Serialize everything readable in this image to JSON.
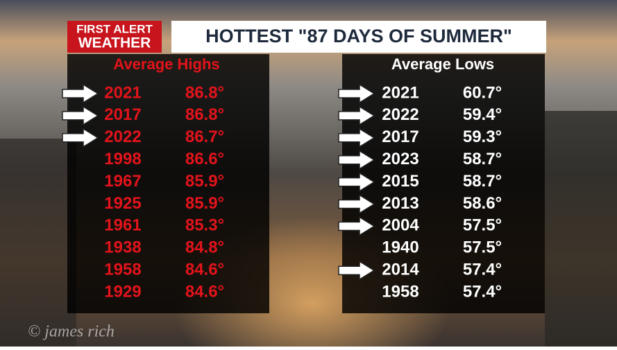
{
  "header": {
    "logo_line1": "FIRST ALERT",
    "logo_line2": "WEATHER",
    "title": "HOTTEST \"87 DAYS OF SUMMER\""
  },
  "tables": [
    {
      "heading": "Average Highs",
      "color": "#e3131b",
      "rows": [
        {
          "year": "2021",
          "value": "86.8°",
          "arrow": true
        },
        {
          "year": "2017",
          "value": "86.8°",
          "arrow": true
        },
        {
          "year": "2022",
          "value": "86.7°",
          "arrow": true
        },
        {
          "year": "1998",
          "value": "86.6°",
          "arrow": false
        },
        {
          "year": "1967",
          "value": "85.9°",
          "arrow": false
        },
        {
          "year": "1925",
          "value": "85.9°",
          "arrow": false
        },
        {
          "year": "1961",
          "value": "85.3°",
          "arrow": false
        },
        {
          "year": "1938",
          "value": "84.8°",
          "arrow": false
        },
        {
          "year": "1958",
          "value": "84.6°",
          "arrow": false
        },
        {
          "year": "1929",
          "value": "84.6°",
          "arrow": false
        }
      ]
    },
    {
      "heading": "Average Lows",
      "color": "#ffffff",
      "rows": [
        {
          "year": "2021",
          "value": "60.7°",
          "arrow": true
        },
        {
          "year": "2022",
          "value": "59.4°",
          "arrow": true
        },
        {
          "year": "2017",
          "value": "59.3°",
          "arrow": true
        },
        {
          "year": "2023",
          "value": "58.7°",
          "arrow": true
        },
        {
          "year": "2015",
          "value": "58.7°",
          "arrow": true
        },
        {
          "year": "2013",
          "value": "58.6°",
          "arrow": true
        },
        {
          "year": "2004",
          "value": "57.5°",
          "arrow": true
        },
        {
          "year": "1940",
          "value": "57.5°",
          "arrow": false
        },
        {
          "year": "2014",
          "value": "57.4°",
          "arrow": true
        },
        {
          "year": "1958",
          "value": "57.4°",
          "arrow": false
        }
      ]
    }
  ],
  "watermark": "© james rich"
}
